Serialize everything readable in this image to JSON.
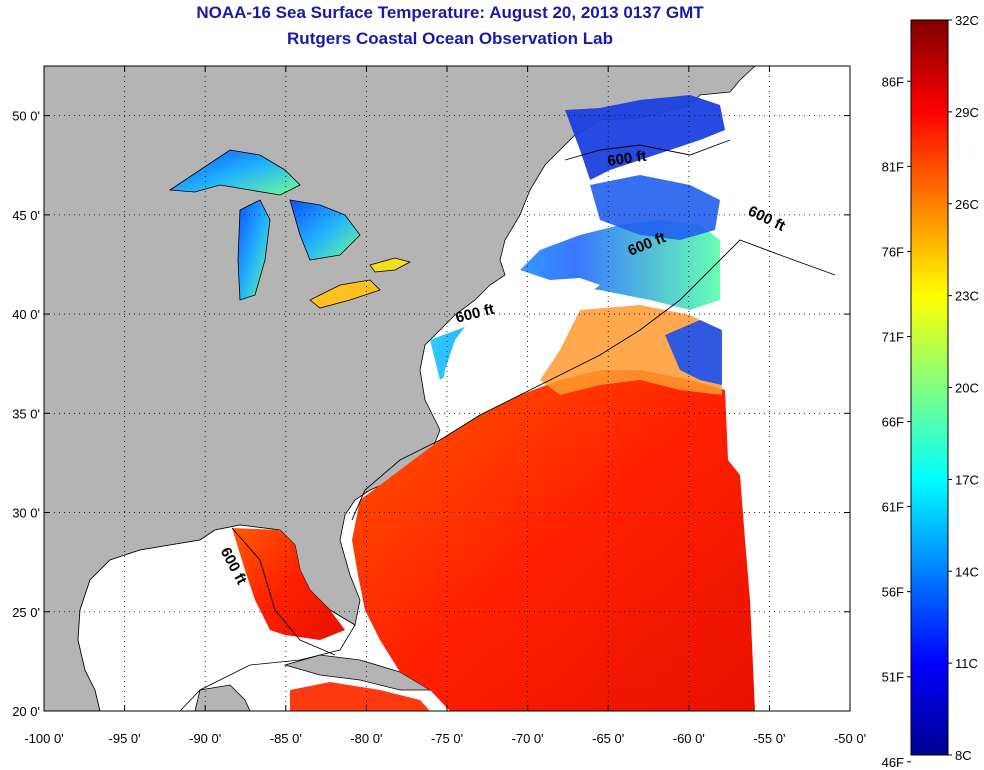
{
  "title": "NOAA-16 Sea Surface Temperature:  August 20, 2013 0137 GMT",
  "subtitle": "Rutgers Coastal Ocean Observation Lab",
  "map": {
    "lon_range": [
      -100,
      -50
    ],
    "lat_range": [
      20,
      52.5
    ],
    "lon_ticks": [
      {
        "value": -100,
        "label": "-100 0'"
      },
      {
        "value": -95,
        "label": "-95 0'"
      },
      {
        "value": -90,
        "label": "-90 0'"
      },
      {
        "value": -85,
        "label": "-85 0'"
      },
      {
        "value": -80,
        "label": "-80 0'"
      },
      {
        "value": -75,
        "label": "-75 0'"
      },
      {
        "value": -70,
        "label": "-70 0'"
      },
      {
        "value": -65,
        "label": "-65 0'"
      },
      {
        "value": -60,
        "label": "-60 0'"
      },
      {
        "value": -55,
        "label": "-55 0'"
      },
      {
        "value": -50,
        "label": "-50 0'"
      }
    ],
    "lat_ticks": [
      {
        "value": 20,
        "label": "20 0'"
      },
      {
        "value": 25,
        "label": "25 0'"
      },
      {
        "value": 30,
        "label": "30 0'"
      },
      {
        "value": 35,
        "label": "35 0'"
      },
      {
        "value": 40,
        "label": "40 0'"
      },
      {
        "value": 45,
        "label": "45 0'"
      },
      {
        "value": 50,
        "label": "50 0'"
      }
    ],
    "grid": "dotted",
    "land_color": "#b4b4b4",
    "no_data_color": "#ffffff",
    "contour_labels": [
      {
        "text": "600 ft",
        "lon": -88.5,
        "lat": 27.2,
        "angle": 62
      },
      {
        "text": "600 ft",
        "lon": -73.2,
        "lat": 39.8,
        "angle": -14
      },
      {
        "text": "600 ft",
        "lon": -62.5,
        "lat": 43.3,
        "angle": -22
      },
      {
        "text": "600 ft",
        "lon": -55.3,
        "lat": 44.6,
        "angle": 26
      },
      {
        "text": "600 ft",
        "lon": -63.8,
        "lat": 47.6,
        "angle": -8
      }
    ]
  },
  "colorbar": {
    "colors": [
      "#00008f",
      "#0000ff",
      "#0080ff",
      "#00ffff",
      "#80ff80",
      "#ffff00",
      "#ff8000",
      "#ff0000",
      "#800000"
    ],
    "range_c": [
      8,
      32
    ],
    "celsius_labels": [
      {
        "value": 8,
        "label": "8C"
      },
      {
        "value": 11,
        "label": "11C"
      },
      {
        "value": 14,
        "label": "14C"
      },
      {
        "value": 17,
        "label": "17C"
      },
      {
        "value": 20,
        "label": "20C"
      },
      {
        "value": 23,
        "label": "23C"
      },
      {
        "value": 26,
        "label": "26C"
      },
      {
        "value": 29,
        "label": "29C"
      },
      {
        "value": 32,
        "label": "32C"
      }
    ],
    "fahrenheit_labels": [
      {
        "value": 46,
        "label": "46F"
      },
      {
        "value": 51,
        "label": "51F"
      },
      {
        "value": 56,
        "label": "56F"
      },
      {
        "value": 61,
        "label": "61F"
      },
      {
        "value": 66,
        "label": "66F"
      },
      {
        "value": 71,
        "label": "71F"
      },
      {
        "value": 76,
        "label": "76F"
      },
      {
        "value": 81,
        "label": "81F"
      },
      {
        "value": 86,
        "label": "86F"
      }
    ]
  }
}
